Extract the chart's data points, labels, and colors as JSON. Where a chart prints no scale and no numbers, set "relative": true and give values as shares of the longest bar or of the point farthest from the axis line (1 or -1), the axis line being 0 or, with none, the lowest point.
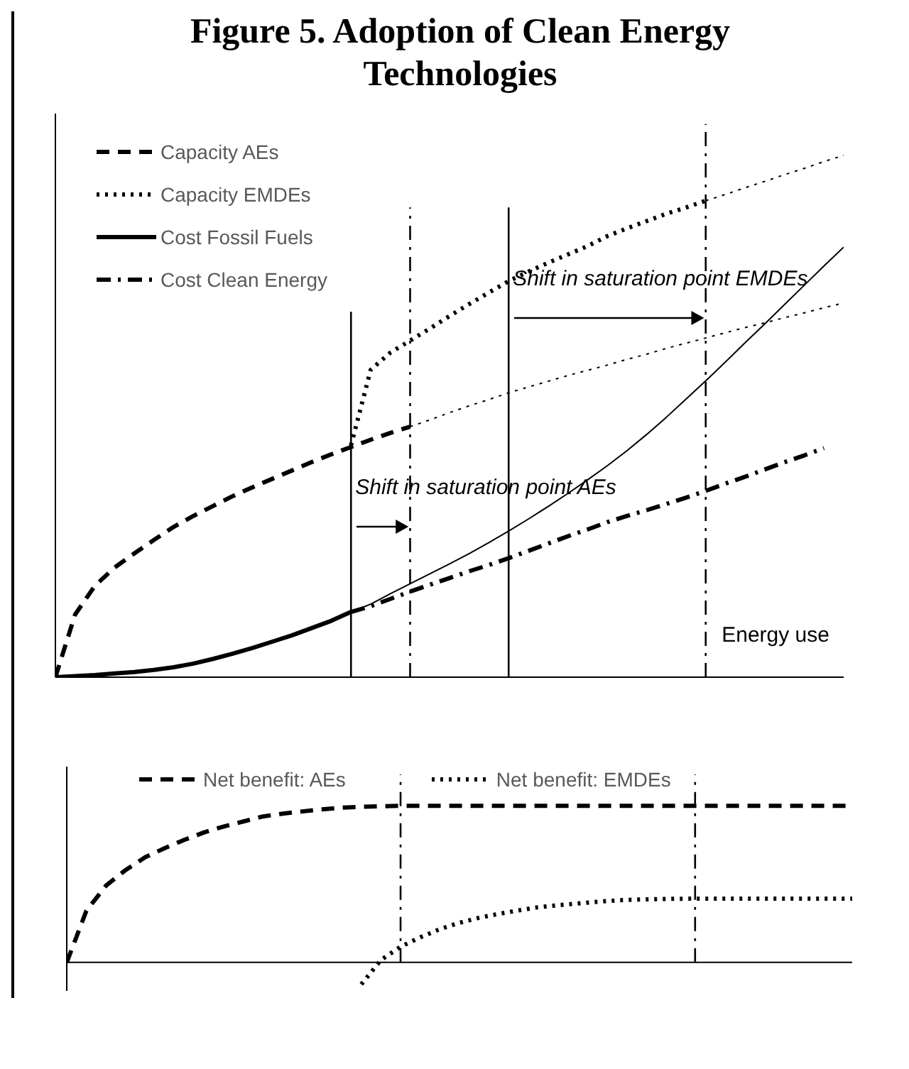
{
  "chart_data": [
    {
      "type": "line",
      "title": "Figure 5. Adoption of Clean Energy Technologies",
      "xlabel": "Energy use",
      "relative": true,
      "grid": false,
      "legend": "top left",
      "categories": [
        null,
        null,
        null,
        null,
        null,
        null,
        null,
        null,
        null,
        null,
        null,
        null,
        null,
        null,
        null,
        null,
        null,
        null,
        null,
        null,
        null,
        null,
        null,
        null,
        null,
        null,
        null,
        null,
        null,
        null,
        null,
        null,
        null,
        null,
        null,
        null,
        null,
        null,
        null,
        null,
        null
      ],
      "series": [
        {
          "name": "Capacity AEs",
          "color": "#000000",
          "line_style": "dashed",
          "values": [
            0,
            0.12,
            0.175,
            0.21,
            0.237,
            0.263,
            0.288,
            0.309,
            0.328,
            0.347,
            0.364,
            0.38,
            0.396,
            0.412,
            0.427,
            0.441,
            0.455,
            0.468,
            0.48,
            null,
            null,
            null,
            null,
            null,
            null,
            null,
            null,
            null,
            null,
            null,
            null,
            null,
            null,
            null,
            null,
            null,
            null,
            null,
            null,
            null,
            null
          ]
        },
        {
          "color": "#000000",
          "line_style": "dotted",
          "values": [
            null,
            null,
            null,
            null,
            null,
            null,
            null,
            null,
            null,
            null,
            null,
            null,
            null,
            null,
            null,
            null,
            null,
            null,
            0.48,
            0.493,
            0.507,
            0.52,
            0.532,
            0.545,
            0.556,
            0.567,
            0.578,
            0.588,
            0.598,
            0.609,
            0.619,
            0.63,
            0.64,
            0.65,
            0.66,
            0.67,
            0.679,
            0.689,
            0.698,
            0.708,
            0.717
          ]
        },
        {
          "name": "Capacity EMDEs",
          "color": "#000000",
          "line_style": "dotted",
          "values": [
            null,
            null,
            null,
            null,
            null,
            null,
            null,
            null,
            null,
            null,
            null,
            null,
            null,
            null,
            null,
            0.444,
            0.589,
            0.622,
            0.645,
            0.668,
            0.692,
            0.715,
            0.737,
            0.759,
            0.777,
            0.794,
            0.81,
            0.826,
            0.845,
            0.86,
            0.874,
            0.888,
            0.9,
            0.913,
            null,
            null,
            null,
            null,
            null,
            null,
            null
          ]
        },
        {
          "color": "#000000",
          "line_style": "dotted",
          "values": [
            null,
            null,
            null,
            null,
            null,
            null,
            null,
            null,
            null,
            null,
            null,
            null,
            null,
            null,
            null,
            null,
            null,
            null,
            null,
            null,
            null,
            null,
            null,
            null,
            null,
            null,
            null,
            null,
            null,
            null,
            null,
            null,
            null,
            0.913,
            0.925,
            0.938,
            0.95,
            0.963,
            0.975,
            0.988,
            1.0
          ]
        },
        {
          "name": "Cost Fossil Fuels",
          "color": "#000000",
          "line_style": "solid",
          "values": [
            0,
            0.002,
            0.004,
            0.007,
            0.01,
            0.014,
            0.019,
            0.026,
            0.035,
            0.045,
            0.056,
            0.068,
            0.08,
            0.094,
            0.108,
            0.125,
            null,
            null,
            null,
            null,
            null,
            null,
            null,
            null,
            null,
            null,
            null,
            null,
            null,
            null,
            null,
            null,
            null,
            null,
            null,
            null,
            null,
            null,
            null,
            null,
            null
          ]
        },
        {
          "color": "#000000",
          "line_style": "solid",
          "values": [
            null,
            null,
            null,
            null,
            null,
            null,
            null,
            null,
            null,
            null,
            null,
            null,
            null,
            null,
            null,
            0.125,
            0.14,
            0.16,
            0.179,
            0.198,
            0.217,
            0.237,
            0.258,
            0.28,
            0.303,
            0.327,
            0.352,
            0.378,
            0.405,
            0.434,
            0.465,
            0.498,
            0.533,
            0.568,
            0.604,
            0.641,
            0.677,
            0.714,
            0.751,
            0.788,
            0.824
          ]
        },
        {
          "name": "Cost Clean Energy",
          "color": "#000000",
          "line_style": "dashdot",
          "values": [
            null,
            null,
            null,
            null,
            null,
            null,
            null,
            null,
            null,
            null,
            null,
            null,
            null,
            null,
            null,
            0.125,
            0.136,
            0.15,
            0.164,
            0.177,
            0.19,
            0.203,
            0.215,
            0.228,
            0.242,
            0.256,
            0.27,
            0.283,
            0.297,
            0.309,
            0.32,
            0.332,
            0.344,
            0.357,
            0.371,
            0.384,
            0.398,
            0.412,
            0.425,
            0.439,
            null
          ]
        }
      ],
      "annotations": [
        "Shift in saturation point AEs",
        "Shift in saturation point EMDEs"
      ]
    },
    {
      "type": "line",
      "relative": true,
      "grid": false,
      "legend": "top",
      "categories": [
        null,
        null,
        null,
        null,
        null,
        null,
        null,
        null,
        null,
        null,
        null,
        null,
        null,
        null,
        null,
        null,
        null,
        null,
        null,
        null,
        null,
        null,
        null,
        null,
        null,
        null,
        null,
        null,
        null,
        null,
        null,
        null,
        null,
        null,
        null,
        null,
        null,
        null,
        null,
        null,
        null
      ],
      "series": [
        {
          "name": "Net benefit: AEs",
          "color": "#000000",
          "line_style": "dashed",
          "values": [
            0,
            0.33,
            0.49,
            0.59,
            0.672,
            0.73,
            0.783,
            0.83,
            0.868,
            0.9,
            0.932,
            0.95,
            0.964,
            0.977,
            0.988,
            0.993,
            0.997,
            1,
            1,
            1,
            1,
            1,
            1,
            1,
            1,
            1,
            1,
            1,
            1,
            1,
            1,
            1,
            1,
            1,
            1,
            1,
            1,
            1,
            1,
            1,
            1
          ]
        },
        {
          "name": "Net benefit: EMDEs",
          "color": "#000000",
          "line_style": "dotted",
          "values": [
            null,
            null,
            null,
            null,
            null,
            null,
            null,
            null,
            null,
            null,
            null,
            null,
            null,
            null,
            null,
            -0.14,
            0.015,
            0.1,
            0.16,
            0.212,
            0.253,
            0.285,
            0.31,
            0.332,
            0.352,
            0.365,
            0.376,
            0.387,
            0.396,
            0.401,
            0.404,
            0.406,
            0.407,
            0.407,
            0.407,
            0.407,
            0.407,
            0.407,
            0.407,
            0.407,
            0.407
          ]
        }
      ]
    }
  ]
}
